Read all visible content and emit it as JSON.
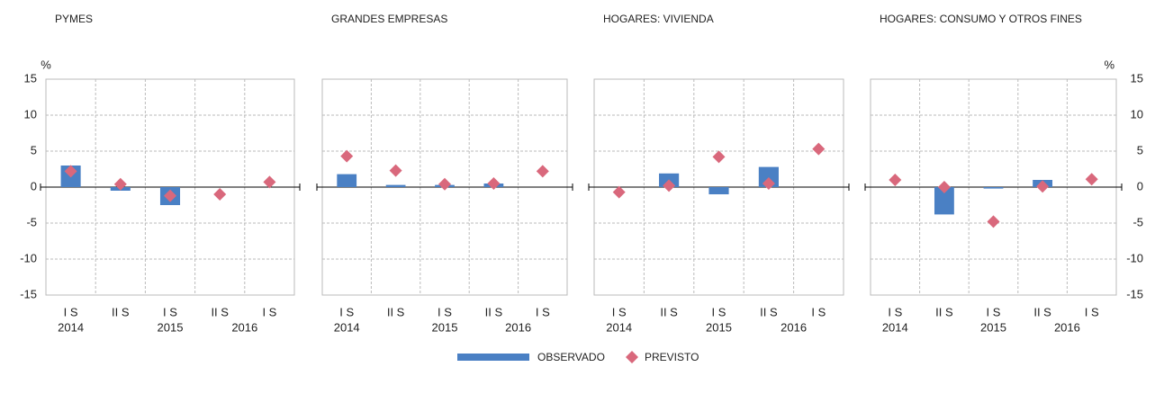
{
  "chart_data": [
    {
      "type": "bar",
      "title": "PYMES",
      "ylabel": "%",
      "categories": [
        "I S",
        "II S",
        "I S",
        "II S",
        "I S"
      ],
      "groups": [
        "2014",
        "2015",
        "2016"
      ],
      "series": [
        {
          "name": "OBSERVADO",
          "color": "#4a80c4",
          "values": [
            3.0,
            -0.5,
            -2.5,
            null,
            null
          ]
        },
        {
          "name": "PREVISTO",
          "color": "#d9687c",
          "values": [
            2.2,
            0.4,
            -1.2,
            -1.0,
            0.7
          ]
        }
      ],
      "ylim": [
        -15,
        15
      ],
      "yticks": [
        -15,
        -10,
        -5,
        0,
        5,
        10,
        15
      ]
    },
    {
      "type": "bar",
      "title": "GRANDES EMPRESAS",
      "categories": [
        "I S",
        "II S",
        "I S",
        "II S",
        "I S"
      ],
      "groups": [
        "2014",
        "2015",
        "2016"
      ],
      "series": [
        {
          "color": "#4a80c4",
          "values": [
            1.8,
            0.3,
            0.3,
            0.5,
            null
          ]
        },
        {
          "color": "#d9687c",
          "values": [
            4.3,
            2.3,
            0.4,
            0.5,
            2.2
          ]
        }
      ],
      "ylim": [
        -15,
        15
      ],
      "yticks": [
        -15,
        -10,
        -5,
        0,
        5,
        10,
        15
      ]
    },
    {
      "type": "bar",
      "title": "HOGARES: VIVIENDA",
      "categories": [
        "I S",
        "II S",
        "I S",
        "II S",
        "I S"
      ],
      "groups": [
        "2014",
        "2015",
        "2016"
      ],
      "series": [
        {
          "color": "#4a80c4",
          "values": [
            null,
            1.9,
            -1.0,
            2.8,
            null
          ]
        },
        {
          "color": "#d9687c",
          "values": [
            -0.7,
            0.2,
            4.2,
            0.5,
            5.3
          ]
        }
      ],
      "ylim": [
        -15,
        15
      ],
      "yticks": [
        -15,
        -10,
        -5,
        0,
        5,
        10,
        15
      ]
    },
    {
      "type": "bar",
      "title": "HOGARES: CONSUMO Y OTROS FINES",
      "ylabel": "%",
      "categories": [
        "I S",
        "II S",
        "I S",
        "II S",
        "I S"
      ],
      "groups": [
        "2014",
        "2015",
        "2016"
      ],
      "series": [
        {
          "color": "#4a80c4",
          "values": [
            null,
            -3.8,
            -0.2,
            1.0,
            null
          ]
        },
        {
          "color": "#d9687c",
          "values": [
            1.0,
            0.0,
            -4.8,
            0.1,
            1.1
          ]
        }
      ],
      "ylim": [
        -15,
        15
      ],
      "yticks": [
        -15,
        -10,
        -5,
        0,
        5,
        10,
        15
      ]
    }
  ]
}
